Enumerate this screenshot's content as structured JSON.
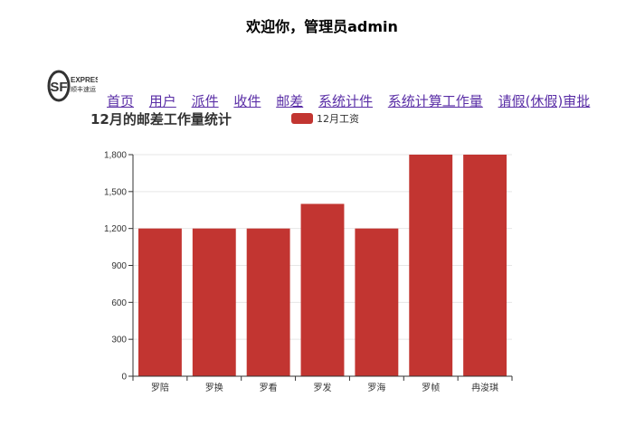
{
  "header": {
    "welcome": "欢迎你，管理员admin"
  },
  "logo": {
    "mark": "SF",
    "line1": "EXPRESS",
    "line2": "顺丰速运"
  },
  "nav": {
    "items": [
      "首页",
      "用户",
      "派件",
      "收件",
      "邮差",
      "系统计件",
      "系统计算工作量",
      "请假(休假)审批"
    ]
  },
  "chart_data": {
    "type": "bar",
    "title": "12月的邮差工作量统计",
    "categories": [
      "罗陪",
      "罗换",
      "罗看",
      "罗发",
      "罗海",
      "罗帧",
      "冉浚琪"
    ],
    "series": [
      {
        "name": "12月工资",
        "values": [
          1200,
          1200,
          1200,
          1400,
          1200,
          1800,
          1800
        ]
      }
    ],
    "yticks": [
      0,
      300,
      600,
      900,
      1200,
      1500,
      1800
    ],
    "ylim": [
      0,
      1800
    ],
    "grid": true,
    "legend": "top"
  },
  "colors": {
    "bar": "#c23531",
    "nav_link": "#5a2ea6",
    "grid": "#e6e6e6"
  }
}
